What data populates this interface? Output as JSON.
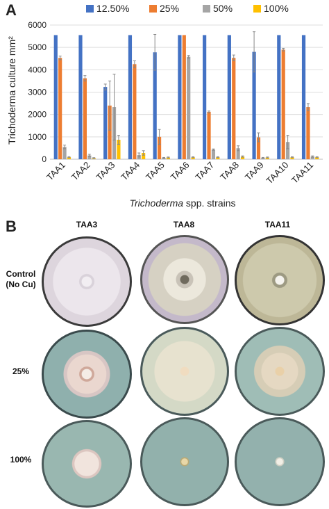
{
  "panels": {
    "a": "A",
    "b": "B"
  },
  "chart_data": {
    "type": "bar",
    "xlabel_italic": "Trichoderma",
    "xlabel_rest": " spp. strains",
    "ylabel": "Trichoderma culture mm²",
    "ylim": [
      0,
      6000
    ],
    "yticks": [
      0,
      1000,
      2000,
      3000,
      4000,
      5000,
      6000
    ],
    "legend_position": "top",
    "categories": [
      "TAA1",
      "TAA2",
      "TAA3",
      "TAA4",
      "TAA5",
      "TAA6",
      "TAA7",
      "TAA8",
      "TAA9",
      "TAA10",
      "TAA11"
    ],
    "series": [
      {
        "name": "12.50%",
        "color": "#4472C4",
        "values": [
          5550,
          5550,
          3230,
          5550,
          4780,
          5550,
          5550,
          5550,
          4800,
          5550,
          5550
        ],
        "errors": [
          0,
          0,
          130,
          0,
          800,
          0,
          0,
          0,
          900,
          0,
          0
        ]
      },
      {
        "name": "25%",
        "color": "#ED7D31",
        "values": [
          4530,
          3620,
          2400,
          4250,
          1000,
          5550,
          2120,
          4530,
          980,
          4900,
          2330
        ],
        "errors": [
          80,
          120,
          1100,
          150,
          330,
          0,
          40,
          130,
          200,
          60,
          160
        ]
      },
      {
        "name": "50%",
        "color": "#A5A5A5",
        "values": [
          550,
          170,
          2330,
          190,
          60,
          4580,
          430,
          490,
          60,
          770,
          120
        ],
        "errors": [
          80,
          50,
          1470,
          90,
          20,
          60,
          30,
          110,
          20,
          300,
          30
        ]
      },
      {
        "name": "100%",
        "color": "#FFC000",
        "values": [
          90,
          50,
          870,
          280,
          80,
          90,
          90,
          120,
          80,
          90,
          90
        ],
        "errors": [
          20,
          20,
          200,
          100,
          20,
          20,
          20,
          30,
          20,
          20,
          20
        ]
      }
    ]
  },
  "photo_grid": {
    "columns": [
      "TAA3",
      "TAA8",
      "TAA11"
    ],
    "rows": [
      {
        "label_line1": "Control",
        "label_line2": "(No Cu)"
      },
      {
        "label_line1": "25%",
        "label_line2": ""
      },
      {
        "label_line1": "100%",
        "label_line2": ""
      }
    ],
    "colors": {
      "dish_rim": "#3b3b3b",
      "agar": "#8fb0ad",
      "control_fungus": "#e2dbe2",
      "taa3_colony": "#eadad5",
      "taa8_colony": "#e6e2cf",
      "taa11_colony": "#c9c5a4"
    }
  }
}
